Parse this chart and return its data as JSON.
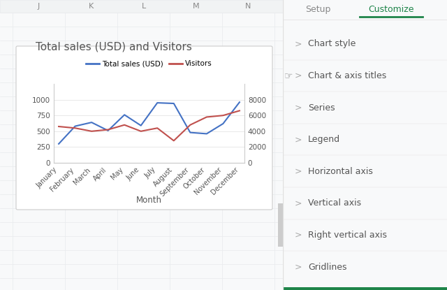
{
  "title": "Total sales (USD) and Visitors",
  "xlabel": "Month",
  "months": [
    "January",
    "February",
    "March",
    "April",
    "May",
    "June",
    "July",
    "August",
    "September",
    "October",
    "November",
    "December"
  ],
  "sales_usd": [
    300,
    580,
    640,
    510,
    760,
    590,
    950,
    940,
    480,
    460,
    620,
    960
  ],
  "visitors": [
    4600,
    4400,
    4000,
    4200,
    4800,
    4000,
    4400,
    2800,
    4800,
    5800,
    6000,
    6600
  ],
  "sales_color": "#4472c4",
  "visitors_color": "#c0504d",
  "sales_label": "Total sales (USD)",
  "visitors_label": "Visitors",
  "left_ylim": [
    0,
    1250
  ],
  "left_yticks": [
    0,
    250,
    500,
    750,
    1000
  ],
  "right_ylim": [
    0,
    10000
  ],
  "right_yticks": [
    0,
    2000,
    4000,
    6000,
    8000
  ],
  "sheet_bg": "#f8f9fa",
  "sheet_grid": "#e8eaed",
  "sheet_header_bg": "#f1f3f4",
  "sheet_header_text": "#888888",
  "chart_card_bg": "#ffffff",
  "chart_card_edge": "#cccccc",
  "grid_color": "#e8e8e8",
  "panel_bg": "#ffffff",
  "panel_divider": "#e0e0e0",
  "green_color": "#1e8449",
  "menu_arrow_color": "#aaaaaa",
  "menu_text_color": "#555555",
  "setup_color": "#888888",
  "col_headers": [
    "J",
    "K",
    "L",
    "M",
    "N"
  ],
  "menu_items": [
    "Chart style",
    "Chart & axis titles",
    "Series",
    "Legend",
    "Horizontal axis",
    "Vertical axis",
    "Right vertical axis",
    "Gridlines"
  ]
}
